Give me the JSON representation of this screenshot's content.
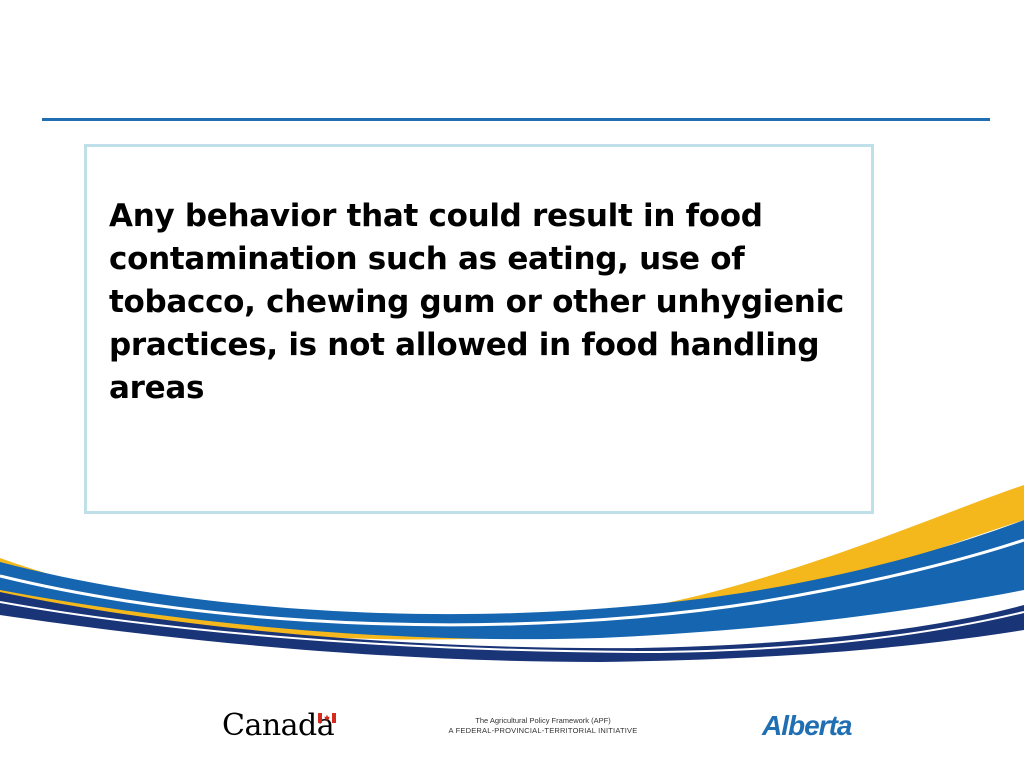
{
  "slide": {
    "body_text": "Any behavior that could result in food contamination such as eating, use of tobacco, chewing gum or other unhygienic practices, is not allowed in food handling areas"
  },
  "footer": {
    "canada_wordmark": "Canada",
    "apf_line1": "The Agricultural Policy Framework (APF)",
    "apf_line2": "A FEDERAL-PROVINCIAL-TERRITORIAL INITIATIVE",
    "alberta_wordmark": "Alberta"
  },
  "colors": {
    "rule_blue": "#1f6fb2",
    "box_border": "#bfe0e8",
    "swoosh_yellow": "#f5b81c",
    "swoosh_blue": "#1565b0",
    "swoosh_navy": "#1a3478",
    "canada_red": "#d52b1e"
  },
  "icons": {
    "flag": "canada-flag-icon"
  }
}
